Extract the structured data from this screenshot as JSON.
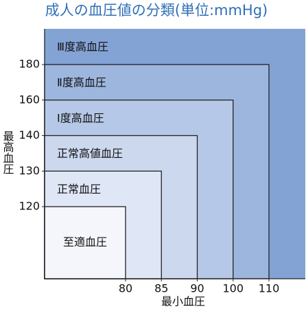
{
  "chart_data": {
    "type": "region",
    "title": "成人の血圧値の分類(単位:mmHg)",
    "xlabel": "最小血圧",
    "ylabel": "最高血圧",
    "xticks": [
      80,
      85,
      90,
      100,
      110
    ],
    "yticks": [
      120,
      130,
      140,
      160,
      180
    ],
    "regions": [
      {
        "name": "至適血圧",
        "x": 80,
        "y": 120,
        "color": "#f4f6fc"
      },
      {
        "name": "正常血圧",
        "x": 85,
        "y": 130,
        "color": "#dfe6f5"
      },
      {
        "name": "正常高値血圧",
        "x": 90,
        "y": 140,
        "color": "#ccd8ee"
      },
      {
        "name": "Ⅰ度高血圧",
        "x": 100,
        "y": 160,
        "color": "#b6c8e7"
      },
      {
        "name": "Ⅱ度高血圧",
        "x": 110,
        "y": 180,
        "color": "#9db6de"
      },
      {
        "name": "Ⅲ度高血圧",
        "color": "#84a3d5"
      }
    ]
  }
}
